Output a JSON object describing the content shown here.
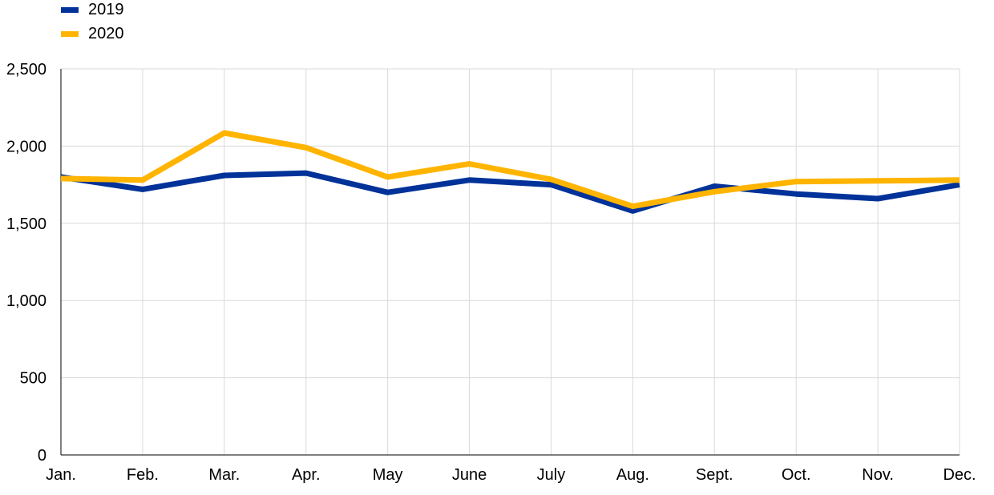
{
  "chart_data": {
    "type": "line",
    "title": "",
    "xlabel": "",
    "ylabel": "",
    "categories": [
      "Jan.",
      "Feb.",
      "Mar.",
      "Apr.",
      "May",
      "June",
      "July",
      "Aug.",
      "Sept.",
      "Oct.",
      "Nov.",
      "Dec."
    ],
    "ylim": [
      0,
      2500
    ],
    "yticks": [
      0,
      500,
      1000,
      1500,
      2000,
      2500
    ],
    "ytick_labels": [
      "0",
      "500",
      "1,000",
      "1,500",
      "2,000",
      "2,500"
    ],
    "grid": true,
    "legend_position": "top-left",
    "series": [
      {
        "name": "2019",
        "color": "#003299",
        "values": [
          1800,
          1720,
          1810,
          1825,
          1700,
          1780,
          1750,
          1580,
          1740,
          1690,
          1660,
          1750
        ]
      },
      {
        "name": "2020",
        "color": "#FFB400",
        "values": [
          1790,
          1780,
          2085,
          1990,
          1800,
          1885,
          1785,
          1610,
          1705,
          1770,
          1775,
          1780
        ]
      }
    ]
  }
}
